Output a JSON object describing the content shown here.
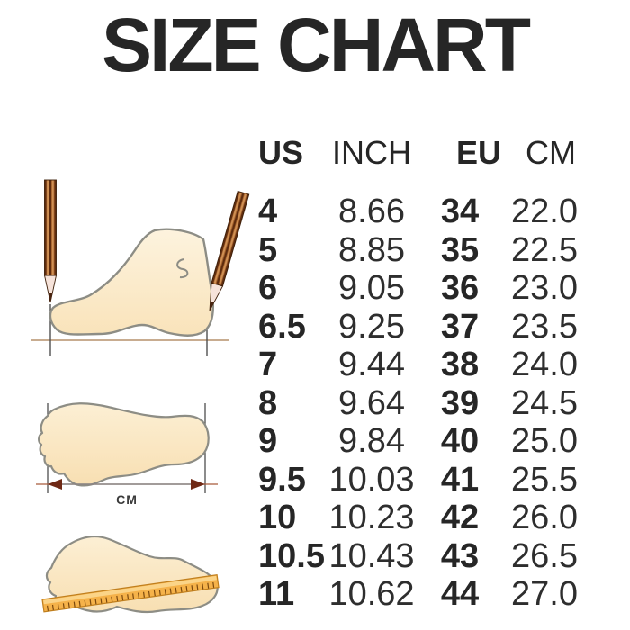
{
  "title": "SIZE CHART",
  "table": {
    "headers": [
      "US",
      "INCH",
      "EU",
      "CM"
    ],
    "rows": [
      [
        "4",
        "8.66",
        "34",
        "22.0"
      ],
      [
        "5",
        "8.85",
        "35",
        "22.5"
      ],
      [
        "6",
        "9.05",
        "36",
        "23.0"
      ],
      [
        "6.5",
        "9.25",
        "37",
        "23.5"
      ],
      [
        "7",
        "9.44",
        "38",
        "24.0"
      ],
      [
        "8",
        "9.64",
        "39",
        "24.5"
      ],
      [
        "9",
        "9.84",
        "40",
        "25.0"
      ],
      [
        "9.5",
        "10.03",
        "41",
        "25.5"
      ],
      [
        "10",
        "10.23",
        "42",
        "26.0"
      ],
      [
        "10.5",
        "10.43",
        "43",
        "26.5"
      ],
      [
        "11",
        "10.62",
        "44",
        "27.0"
      ]
    ]
  },
  "illustrations": {
    "cm_label": "CM",
    "foot_side": "foot-side-view-measured-with-pencils",
    "footprint_arrow": "footprint-length-measurement-arrow",
    "footprint_ruler": "footprint-with-diagonal-ruler"
  },
  "colors": {
    "text": "#262626",
    "foot_fill": "#f9e3ba",
    "foot_fill_light": "#fdf3de",
    "foot_outline": "#8d8d85",
    "pencil_brown": "#a05e2a",
    "pencil_dark": "#5e2c0e",
    "ruler_orange": "#f5b24a",
    "arrowhead_red": "#6f2915",
    "baseline_tan": "#b5916b"
  }
}
